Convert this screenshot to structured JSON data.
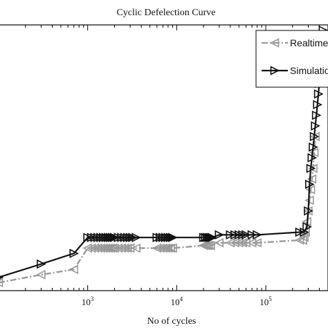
{
  "chart_data": {
    "type": "line",
    "title": "Cyclic Defelection Curve",
    "xlabel": "No of cycles",
    "ylabel": "",
    "x_scale": "log",
    "xlim": [
      100,
      500000
    ],
    "ylim": [
      0,
      100
    ],
    "grid": false,
    "legend_position": "top-right",
    "x_ticks": [
      {
        "base": "10",
        "exp": "3",
        "value": 1000
      },
      {
        "base": "10",
        "exp": "4",
        "value": 10000
      },
      {
        "base": "10",
        "exp": "5",
        "value": 100000
      }
    ],
    "series": [
      {
        "name": "Realtime",
        "color": "#999999",
        "line_style": "dash-dot",
        "marker": "triangle-left",
        "x": [
          100,
          300,
          700,
          1000,
          1100,
          1200,
          1300,
          1400,
          1500,
          1600,
          1700,
          1800,
          1900,
          2000,
          2200,
          2400,
          2600,
          2800,
          3000,
          3500,
          6000,
          6500,
          7000,
          7500,
          8000,
          8500,
          9000,
          20000,
          21000,
          22000,
          23000,
          24000,
          30000,
          40000,
          45000,
          50000,
          55000,
          60000,
          70000,
          80000,
          240000,
          260000,
          270000,
          280000,
          290000,
          300000,
          310000,
          320000,
          330000,
          340000,
          350000,
          360000
        ],
        "y": [
          3,
          6,
          8,
          16,
          16,
          16,
          16,
          16,
          16,
          16,
          16,
          16,
          16,
          16,
          16,
          16,
          16,
          16,
          16,
          16,
          16,
          16,
          16,
          16,
          16,
          16,
          16,
          17,
          17,
          17,
          17,
          17,
          18,
          18,
          18,
          18,
          18,
          18,
          18,
          18,
          19,
          19,
          20,
          22,
          26,
          30,
          34,
          38,
          42,
          46,
          52,
          58
        ]
      },
      {
        "name": "Simulation",
        "color": "#111111",
        "line_style": "solid",
        "marker": "triangle-right",
        "x": [
          100,
          300,
          700,
          1000,
          1100,
          1200,
          1300,
          1400,
          1500,
          1600,
          1700,
          1800,
          1900,
          2000,
          2200,
          2400,
          2600,
          2800,
          3000,
          3200,
          3500,
          6000,
          6500,
          7000,
          7500,
          8000,
          8500,
          9000,
          20000,
          21000,
          22000,
          23000,
          24000,
          25000,
          30000,
          40000,
          45000,
          50000,
          55000,
          60000,
          70000,
          80000,
          240000,
          270000,
          290000,
          300000,
          310000,
          320000,
          330000,
          340000,
          350000,
          360000,
          370000,
          380000,
          390000,
          400000,
          410000,
          420000,
          440000
        ],
        "y": [
          5,
          10,
          14,
          20,
          20,
          20,
          20,
          20,
          20,
          20,
          20,
          20,
          20,
          20,
          20,
          20,
          20,
          20,
          20,
          20,
          20,
          20,
          20,
          20,
          20,
          20,
          20,
          20,
          20,
          20,
          20,
          20,
          20,
          20,
          21,
          21,
          21,
          21,
          21,
          21,
          21,
          21,
          22,
          22,
          24,
          30,
          40,
          46,
          50,
          54,
          58,
          62,
          66,
          70,
          74,
          78,
          80,
          84,
          98
        ]
      }
    ]
  }
}
